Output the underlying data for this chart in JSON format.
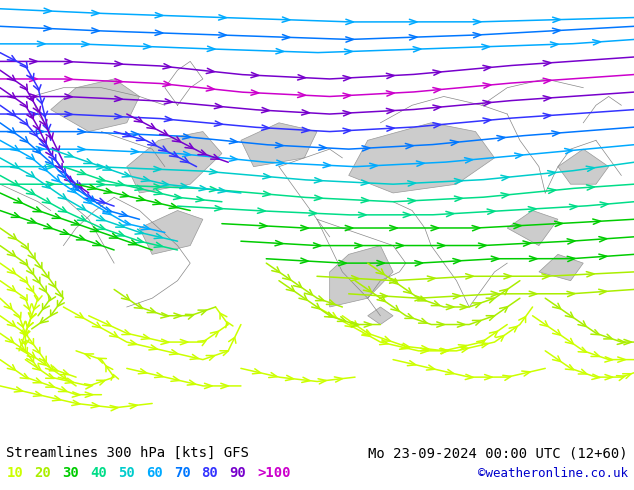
{
  "title_left": "Streamlines 300 hPa [kts] GFS",
  "title_right": "Mo 23-09-2024 00:00 UTC (12+60)",
  "credit": "©weatheronline.co.uk",
  "legend_values": [
    "10",
    "20",
    "30",
    "40",
    "50",
    "60",
    "70",
    "80",
    "90",
    ">100"
  ],
  "legend_colors": [
    "#ccff00",
    "#aaee00",
    "#00cc00",
    "#00dd88",
    "#00cccc",
    "#00aaff",
    "#0077ff",
    "#3333ff",
    "#7700cc",
    "#cc00cc"
  ],
  "bg_color": "#aaffaa",
  "map_bg": "#bbffbb",
  "land_gray": "#cccccc",
  "border_color": "#888888",
  "text_color": "#000000",
  "title_fontsize": 10,
  "legend_fontsize": 10,
  "credit_color": "#0000cc",
  "figsize": [
    6.34,
    4.9
  ],
  "dpi": 100,
  "speed_colors": {
    "10": "#ccff00",
    "20": "#aaee00",
    "30": "#00cc00",
    "40": "#00dd88",
    "50": "#00cccc",
    "60": "#00aaff",
    "70": "#0077ff",
    "80": "#3333ff",
    "90": "#7700cc",
    "100": "#cc00cc"
  }
}
